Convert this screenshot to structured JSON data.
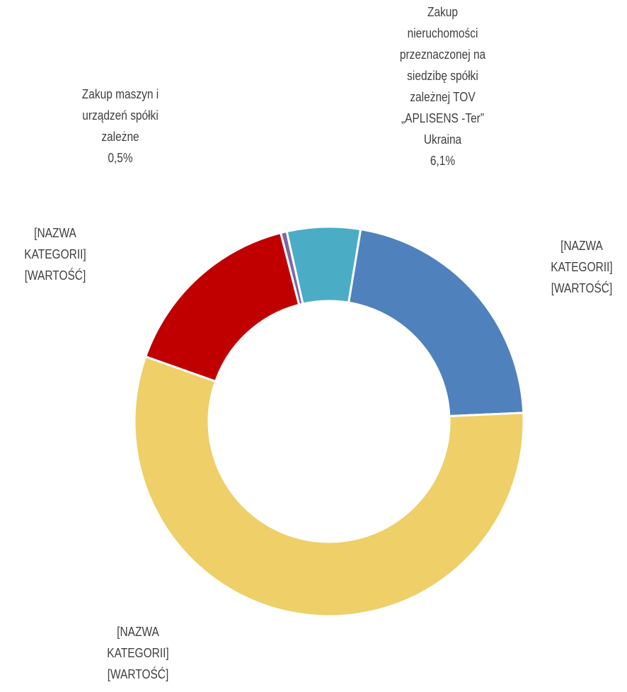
{
  "chart_data": {
    "type": "donut",
    "categories": [
      "Zakup nieruchomości przeznaczonej na siedzibę spółki zależnej TOV „APLISENS -Ter” Ukraina",
      "[NAZWA KATEGORII]",
      "[NAZWA KATEGORII]",
      "[NAZWA KATEGORII]",
      "Zakup maszyn i urządzeń spółki zależne"
    ],
    "values": [
      6.1,
      21.7,
      56.1,
      15.6,
      0.5
    ],
    "value_labels": [
      "6,1%",
      "[WARTOŚĆ]",
      "[WARTOŚĆ]",
      "[WARTOŚĆ]",
      "0,5%"
    ],
    "colors": [
      "#4bacc6",
      "#4f81bd",
      "#eecf68",
      "#c00000",
      "#8064a2"
    ]
  }
}
